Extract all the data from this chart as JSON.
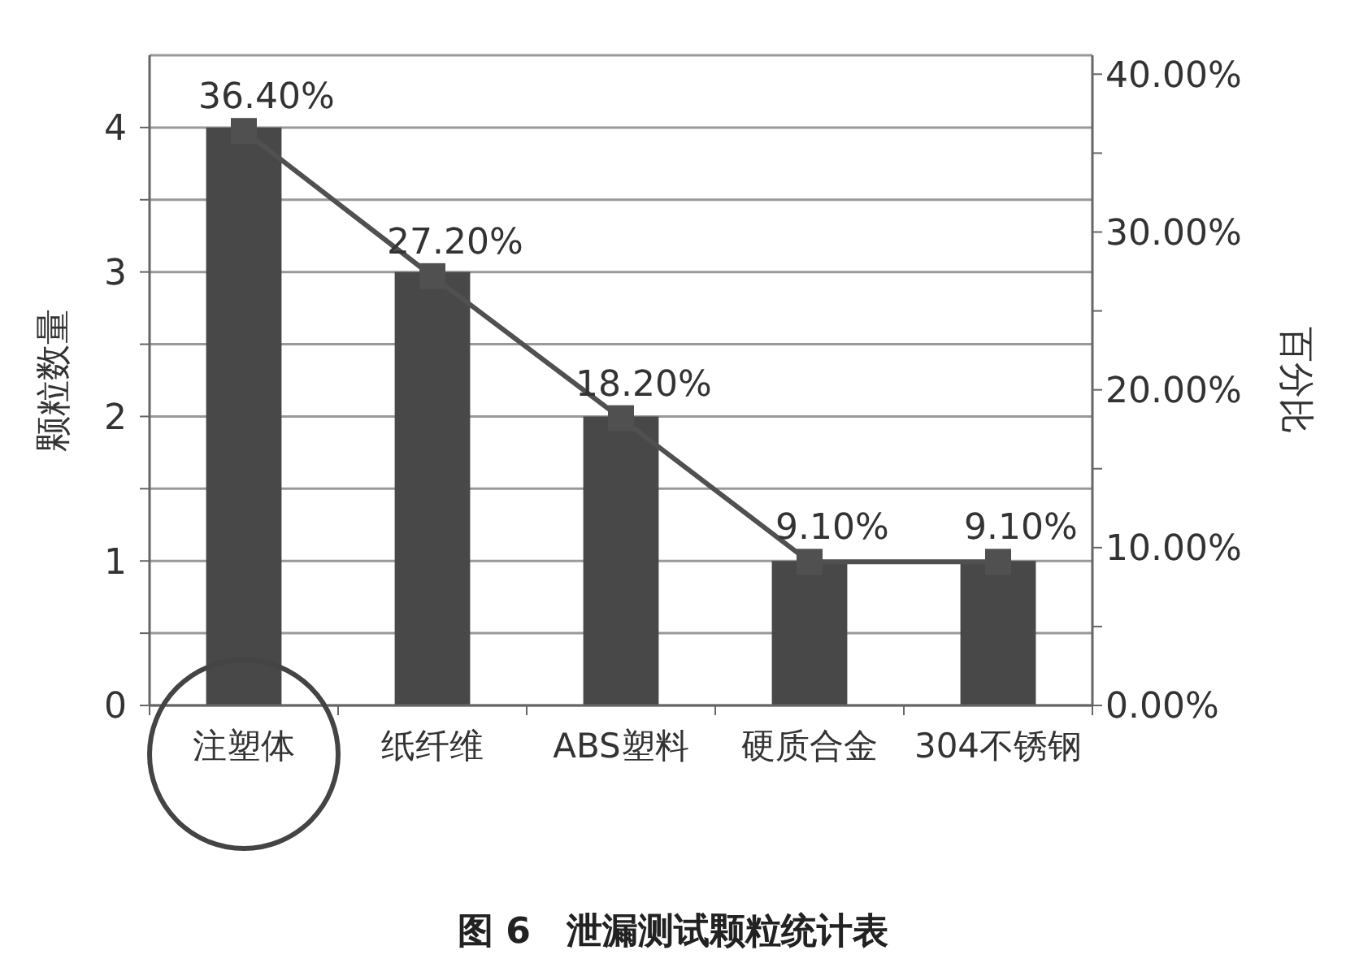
{
  "chart_data": {
    "type": "bar",
    "title": "图 6　泄漏测试颗粒统计表",
    "ylabel": "颗粒数量",
    "y2label": "百分比",
    "categories": [
      "注塑体",
      "纸纤维",
      "ABS塑料",
      "硬质合金",
      "304不锈钢"
    ],
    "series": [
      {
        "color": "#484848",
        "values": [
          4,
          3,
          2,
          1,
          1
        ]
      },
      {
        "type": "line",
        "axis": "y2",
        "color": "#505050",
        "values": [
          36.4,
          27.2,
          18.2,
          9.1,
          9.1
        ],
        "value_labels": [
          "36.40%",
          "27.20%",
          "18.20%",
          "9.10%",
          "9.10%"
        ],
        "marker": "square"
      }
    ],
    "ylim": [
      0,
      4.5
    ],
    "yticks": [
      0,
      {
        "value": 0.5,
        "label": null
      },
      1,
      {
        "value": 1.5,
        "label": null
      },
      2,
      {
        "value": 2.5,
        "label": null
      },
      3,
      {
        "value": 3.5,
        "label": null
      },
      4
    ],
    "y2lim": [
      0,
      41.2
    ],
    "y2ticks": [
      {
        "value": 0,
        "label": "0.00%"
      },
      {
        "value": 5,
        "label": null
      },
      {
        "value": 10,
        "label": "10.00%"
      },
      {
        "value": 15,
        "label": null
      },
      {
        "value": 20,
        "label": "20.00%"
      },
      {
        "value": 25,
        "label": null
      },
      {
        "value": 30,
        "label": "30.00%"
      },
      {
        "value": 35,
        "label": null
      },
      {
        "value": 40,
        "label": "40.00%"
      }
    ],
    "grid": "y"
  }
}
